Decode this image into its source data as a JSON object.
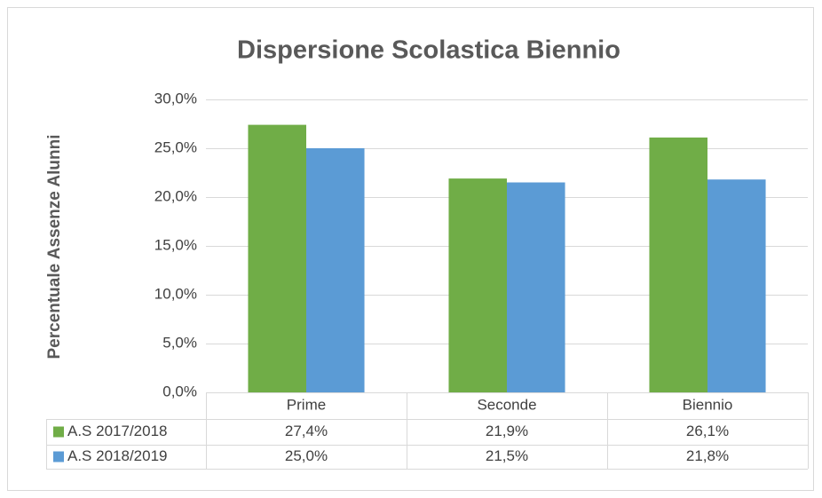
{
  "chart_data": {
    "type": "bar",
    "title": "Dispersione Scolastica Biennio",
    "y_label": "Percentuale Assenze Alunni",
    "categories": [
      "Prime",
      "Seconde",
      "Biennio"
    ],
    "series": [
      {
        "name": "A.S 2017/2018",
        "color": "#70ad47",
        "values": [
          27.4,
          21.9,
          26.1
        ],
        "value_labels": [
          "27,4%",
          "21,9%",
          "26,1%"
        ]
      },
      {
        "name": "A.S 2018/2019",
        "color": "#5b9bd5",
        "values": [
          25.0,
          21.5,
          21.8
        ],
        "value_labels": [
          "25,0%",
          "21,5%",
          "21,8%"
        ]
      }
    ],
    "ylim": [
      0,
      30
    ],
    "yticks": [
      {
        "value": 0,
        "label": "0,0%"
      },
      {
        "value": 5,
        "label": "5,0%"
      },
      {
        "value": 10,
        "label": "10,0%"
      },
      {
        "value": 15,
        "label": "15,0%"
      },
      {
        "value": 20,
        "label": "20,0%"
      },
      {
        "value": 25,
        "label": "25,0%"
      },
      {
        "value": 30,
        "label": "30,0%"
      }
    ],
    "grid": true
  }
}
